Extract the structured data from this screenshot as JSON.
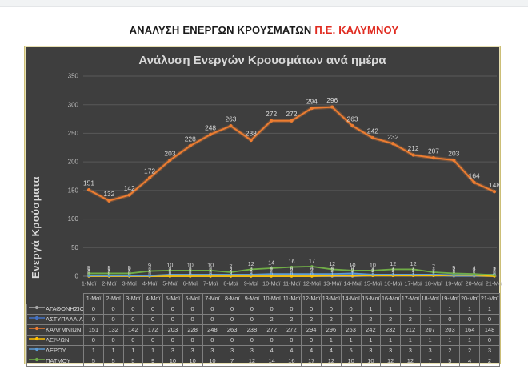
{
  "page": {
    "title_black": "ΑΝΑΛΥΣΗ ΕΝΕΡΓΩΝ ΚΡΟΥΣΜΑΤΩΝ",
    "title_red": "Π.Ε. ΚΑΛΥΜΝΟΥ",
    "colors": {
      "title_red": "#e02b20",
      "chart_background": "#3e3e3e",
      "chart_border": "#ccbf77",
      "gridline": "#595959",
      "axis_text": "#bfbfbf",
      "label_text": "#d9d9d9",
      "table_border": "#7f7f7f"
    }
  },
  "chart_data": {
    "type": "line",
    "title": "Ανάλυση Ενεργών Κρουσμάτων ανά ημέρα",
    "ylabel": "Ενεργά Κρούσματα",
    "xlabel": "",
    "ylim": [
      0,
      350
    ],
    "yticks": [
      0,
      50,
      100,
      150,
      200,
      250,
      300,
      350
    ],
    "grid": true,
    "legend_position": "table-left",
    "categories": [
      "1-Μαϊ",
      "2-Μαϊ",
      "3-Μαϊ",
      "4-Μαϊ",
      "5-Μαϊ",
      "6-Μαϊ",
      "7-Μαϊ",
      "8-Μαϊ",
      "9-Μαϊ",
      "10-Μαϊ",
      "11-Μαϊ",
      "12-Μαϊ",
      "13-Μαϊ",
      "14-Μαϊ",
      "15-Μαϊ",
      "16-Μαϊ",
      "17-Μαϊ",
      "18-Μαϊ",
      "19-Μαϊ",
      "20-Μαϊ",
      "21-Μαϊ"
    ],
    "series": [
      {
        "name": "ΑΓΑΘΟΝΗΣΙΟΥ",
        "color": "#a6a6a6",
        "values": [
          0,
          0,
          0,
          0,
          0,
          0,
          0,
          0,
          0,
          0,
          0,
          0,
          0,
          0,
          1,
          1,
          1,
          1,
          1,
          1,
          1
        ]
      },
      {
        "name": "ΑΣΤΥΠΑΛΑΙΑΣ",
        "color": "#4472c4",
        "values": [
          0,
          0,
          0,
          0,
          0,
          0,
          0,
          0,
          0,
          2,
          2,
          2,
          2,
          2,
          2,
          2,
          2,
          1,
          0,
          0,
          0
        ]
      },
      {
        "name": "ΚΑΛΥΜΝΙΩΝ",
        "color": "#ed7d31",
        "values": [
          151,
          132,
          142,
          172,
          203,
          228,
          248,
          263,
          238,
          272,
          272,
          294,
          296,
          263,
          242,
          232,
          212,
          207,
          203,
          164,
          148
        ]
      },
      {
        "name": "ΛΕΙΨΩΝ",
        "color": "#ffc000",
        "values": [
          0,
          0,
          0,
          0,
          0,
          0,
          0,
          0,
          0,
          0,
          0,
          0,
          1,
          1,
          1,
          1,
          1,
          1,
          1,
          1,
          0
        ]
      },
      {
        "name": "ΛΕΡΟΥ",
        "color": "#5b9bd5",
        "values": [
          1,
          1,
          1,
          1,
          3,
          3,
          3,
          3,
          3,
          4,
          4,
          4,
          4,
          5,
          3,
          3,
          3,
          3,
          2,
          2,
          3
        ]
      },
      {
        "name": "ΠΑΤΜΟΥ",
        "color": "#70ad47",
        "values": [
          5,
          5,
          5,
          9,
          10,
          10,
          10,
          7,
          12,
          14,
          16,
          17,
          12,
          10,
          10,
          12,
          12,
          7,
          5,
          4,
          2
        ]
      }
    ]
  }
}
